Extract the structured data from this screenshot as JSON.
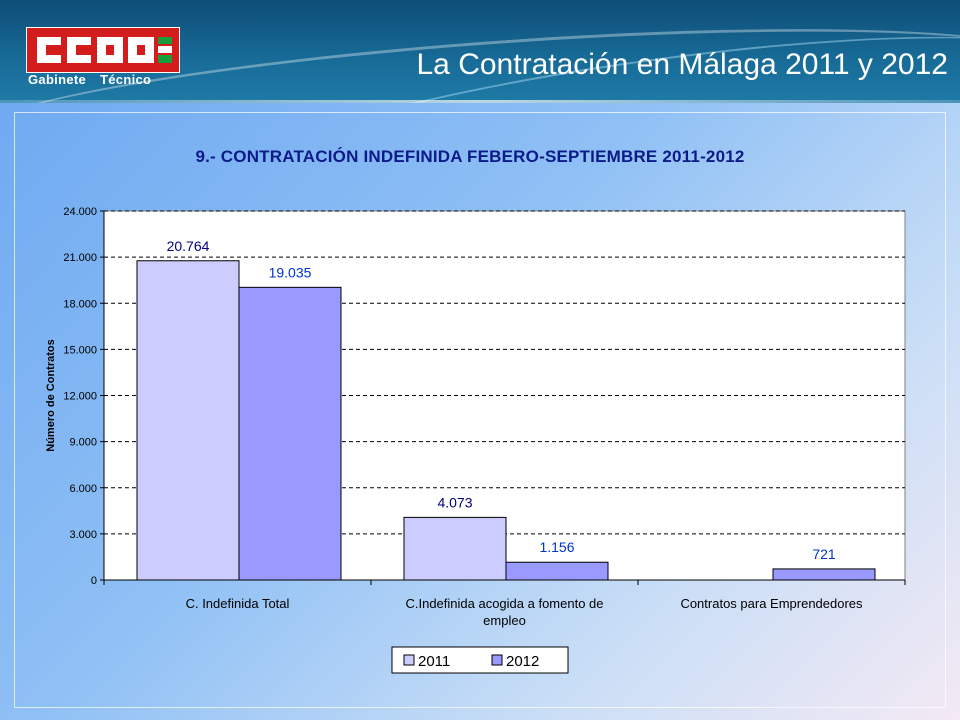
{
  "header": {
    "logo_text": "CCOO",
    "logo_sub_1": "Gabinete",
    "logo_sub_2": "Técnico",
    "title": "La Contratación en Málaga 2011 y 2012"
  },
  "colors": {
    "header": "#176a96",
    "logo_red": "#d31c1c",
    "logo_green": "#1a9b3c",
    "series_2011": "#ccccff",
    "series_2012": "#9999ff",
    "label_2011": "#000080",
    "label_2012": "#0033cc",
    "title": "#0c1a8a"
  },
  "chart_data": {
    "type": "bar",
    "title": "9.- CONTRATACIÓN INDEFINIDA FEBERO-SEPTIEMBRE 2011-2012",
    "ylabel": "Número de Contratos",
    "xlabel": "",
    "ylim": [
      0,
      24000
    ],
    "yticks": [
      0,
      3000,
      6000,
      9000,
      12000,
      15000,
      18000,
      21000,
      24000
    ],
    "ytick_labels": [
      "0",
      "3.000",
      "6.000",
      "9.000",
      "12.000",
      "15.000",
      "18.000",
      "21.000",
      "24.000"
    ],
    "grid": true,
    "legend": "bottom",
    "categories": [
      [
        "C. Indefinida Total"
      ],
      [
        "C.Indefinida acogida a fomento de",
        "empleo"
      ],
      [
        "Contratos para Emprendedores"
      ]
    ],
    "series": [
      {
        "name": "2011",
        "values": [
          20764,
          4073,
          null
        ],
        "labels": [
          "20.764",
          "4.073",
          ""
        ]
      },
      {
        "name": "2012",
        "values": [
          19035,
          1156,
          721
        ],
        "labels": [
          "19.035",
          "1.156",
          "721"
        ]
      }
    ]
  }
}
